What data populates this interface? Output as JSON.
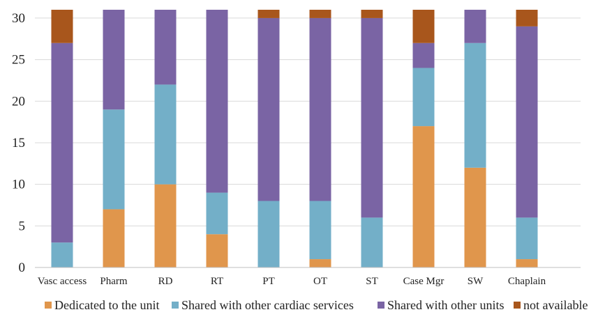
{
  "chart_data": {
    "type": "bar",
    "stacked": true,
    "title": "",
    "xlabel": "",
    "ylabel": "",
    "ylim": [
      0,
      31
    ],
    "yticks": [
      0,
      5,
      10,
      15,
      20,
      25,
      30
    ],
    "grid": true,
    "legend_position": "bottom",
    "categories": [
      "Vasc access",
      "Pharm",
      "RD",
      "RT",
      "PT",
      "OT",
      "ST",
      "Case Mgr",
      "SW",
      "Chaplain"
    ],
    "series": [
      {
        "name": "Dedicated to the unit",
        "color": "#E0964C",
        "values": [
          0,
          7,
          10,
          4,
          0,
          1,
          0,
          17,
          12,
          1
        ]
      },
      {
        "name": "Shared with other cardiac services",
        "color": "#73AFC8",
        "values": [
          3,
          12,
          12,
          5,
          8,
          7,
          6,
          7,
          15,
          5
        ]
      },
      {
        "name": "Shared with other units",
        "color": "#7A64A4",
        "values": [
          24,
          12,
          9,
          22,
          22,
          22,
          24,
          3,
          4,
          23
        ]
      },
      {
        "name": "not available",
        "color": "#A8561C",
        "values": [
          4,
          0,
          0,
          0,
          1,
          1,
          1,
          4,
          0,
          2
        ]
      }
    ]
  }
}
